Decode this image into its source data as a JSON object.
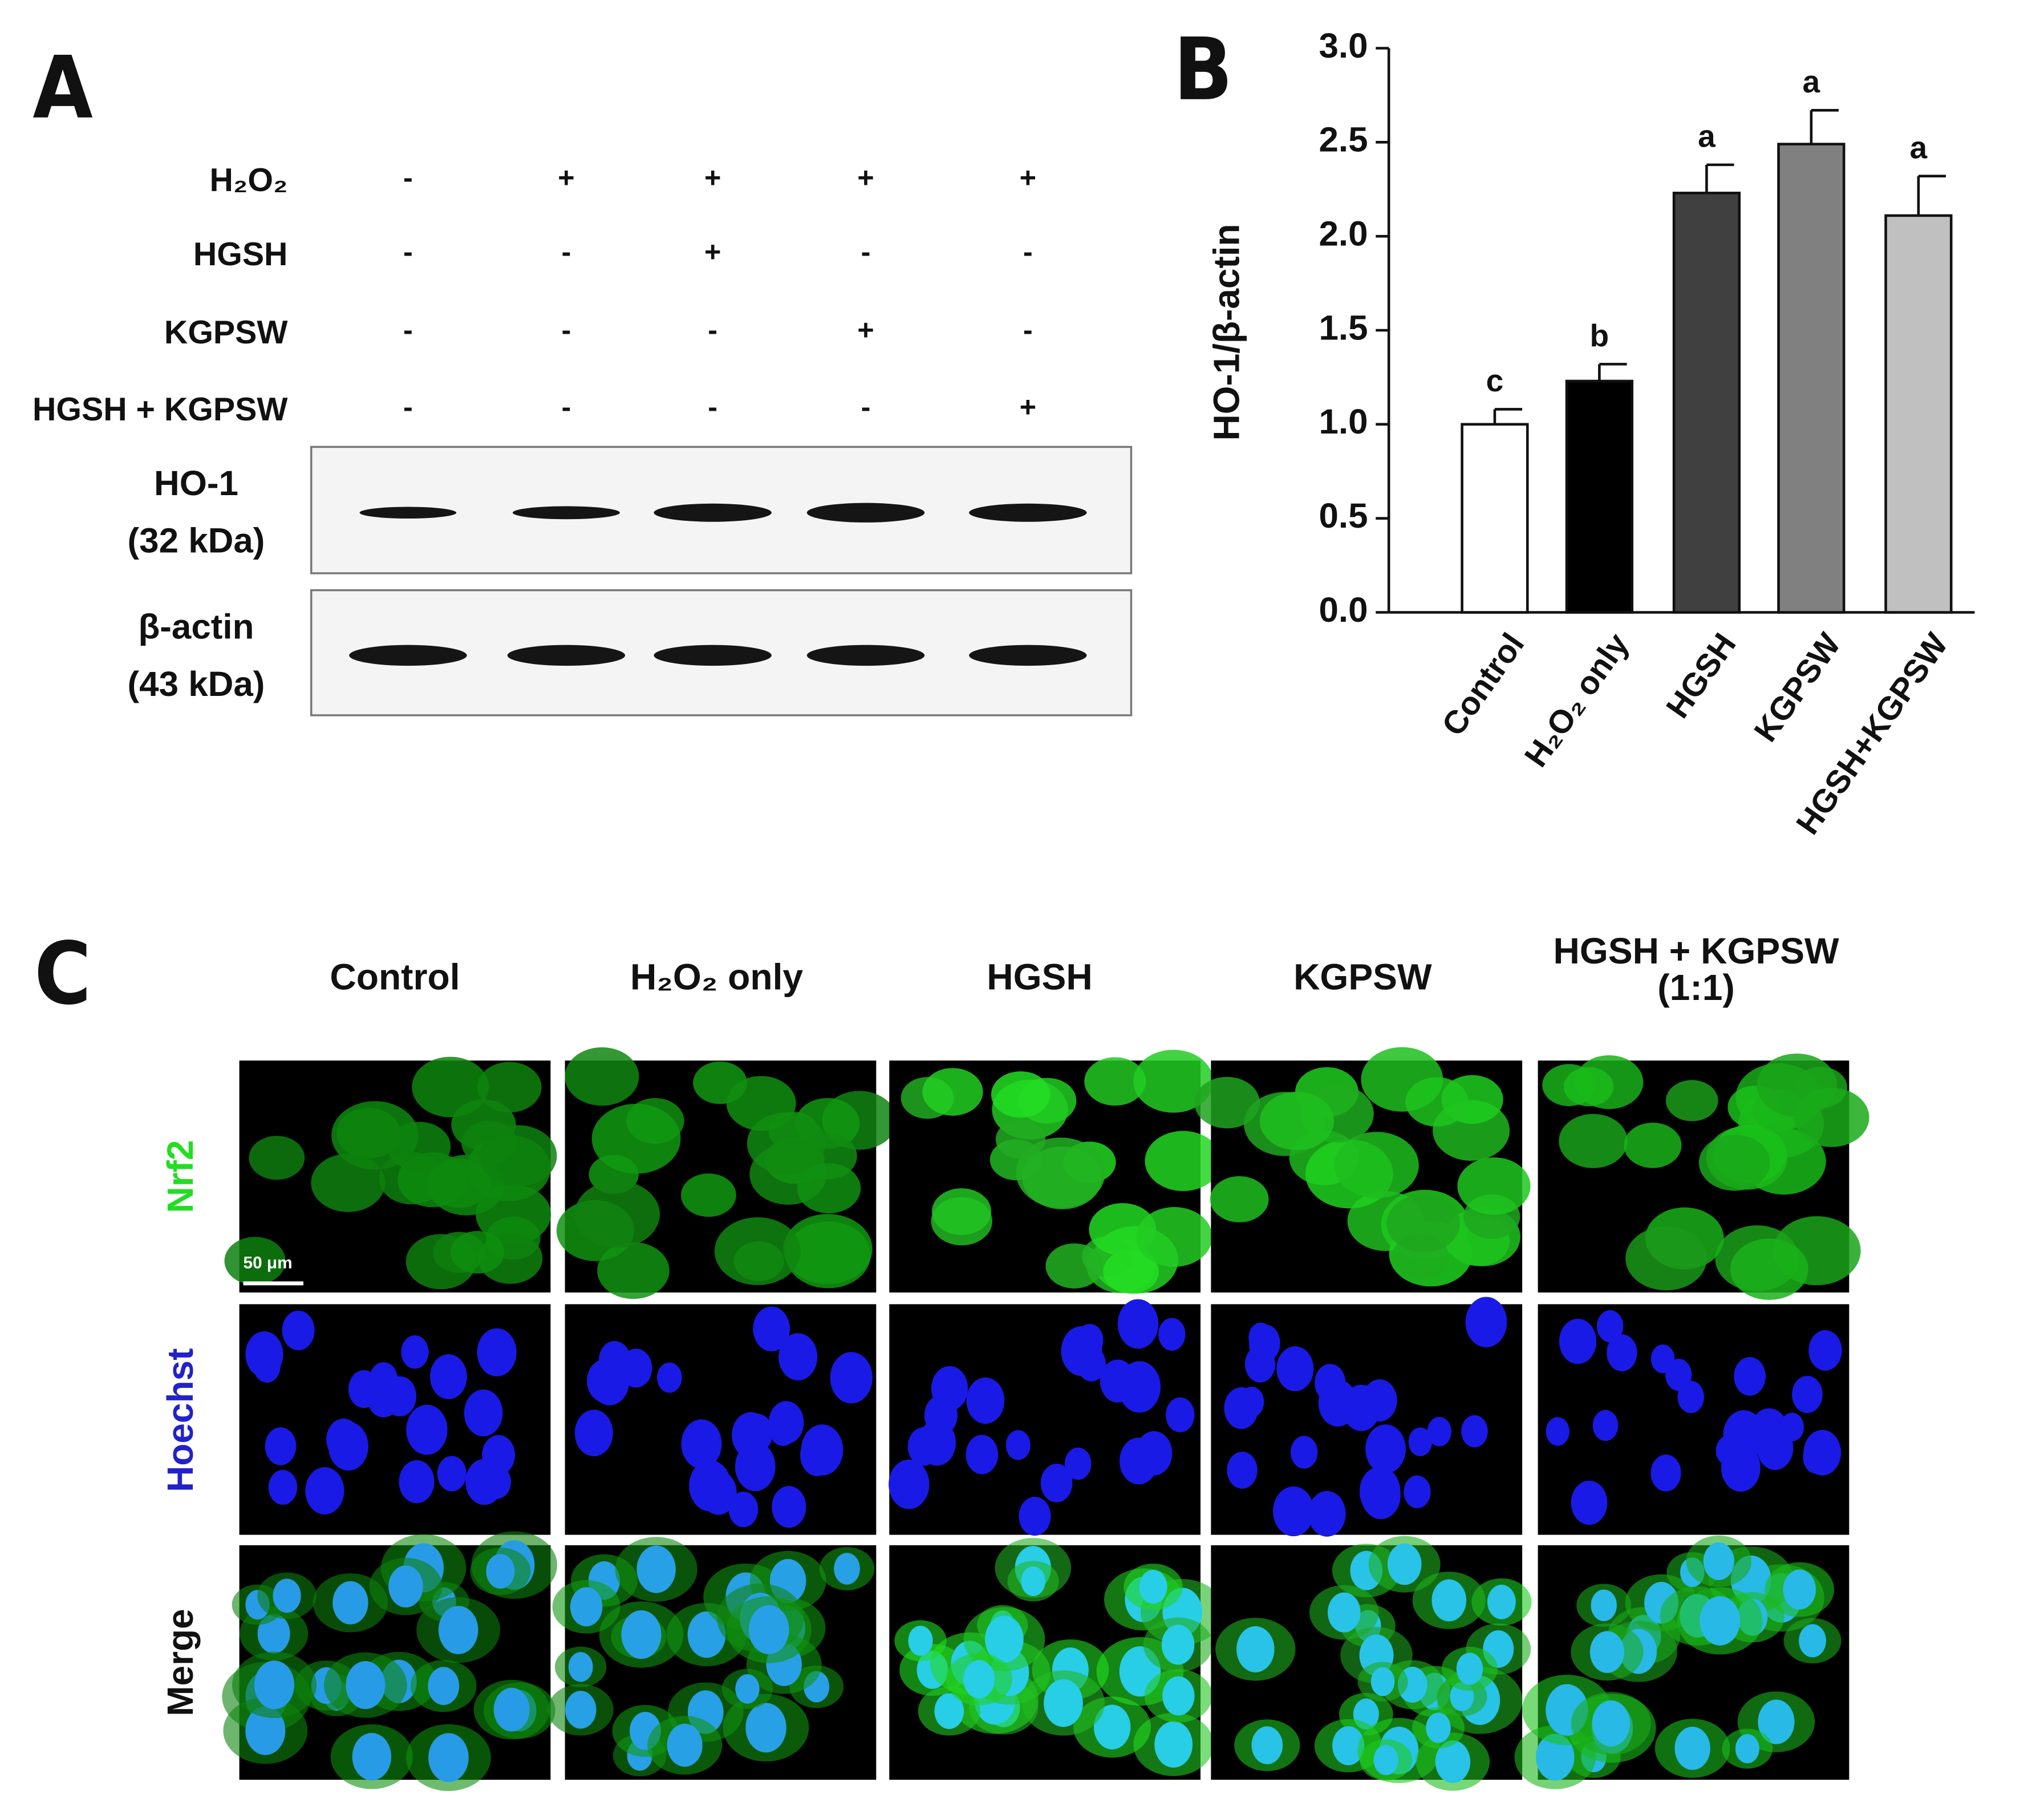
{
  "panel_labels": [
    "A",
    "B",
    "C"
  ],
  "blot": {
    "rows": [
      {
        "label": "H₂O₂",
        "signs": [
          "-",
          "+",
          "+",
          "+",
          "+"
        ]
      },
      {
        "label": "HGSH",
        "signs": [
          "-",
          "-",
          "+",
          "-",
          "-"
        ]
      },
      {
        "label": "KGPSW",
        "signs": [
          "-",
          "-",
          "-",
          "+",
          "-"
        ]
      },
      {
        "label": "HGSH + KGPSW",
        "signs": [
          "-",
          "-",
          "-",
          "-",
          "+"
        ]
      }
    ],
    "bands": [
      {
        "label": "HO-1",
        "size": "(32 kDa)"
      },
      {
        "label": "β-actin",
        "size": "(43 kDa)"
      }
    ]
  },
  "chart_data": {
    "type": "bar",
    "ylabel": "HO-1/β-actin",
    "categories": [
      "Control",
      "H₂O₂ only",
      "HGSH",
      "KGPSW",
      "HGSH+KGPSW"
    ],
    "values": [
      1.0,
      1.23,
      2.23,
      2.49,
      2.11
    ],
    "errors": [
      0.08,
      0.09,
      0.15,
      0.18,
      0.21
    ],
    "annotations": [
      "c",
      "b",
      "a",
      "a",
      "a"
    ],
    "colors": [
      "#ffffff",
      "#000000",
      "#404040",
      "#808080",
      "#c0c0c0"
    ],
    "ylim": [
      0,
      3
    ],
    "yticks": [
      {
        "value": 0,
        "label": "0.0"
      },
      {
        "value": 0.5,
        "label": "0.5"
      },
      {
        "value": 1,
        "label": "1.0"
      },
      {
        "value": 1.5,
        "label": "1.5"
      },
      {
        "value": 2,
        "label": "2.0"
      },
      {
        "value": 2.5,
        "label": "2.5"
      },
      {
        "value": 3,
        "label": "3.0"
      }
    ]
  },
  "microscopy": {
    "column_titles": [
      [
        "Control"
      ],
      [
        "H₂O₂ only"
      ],
      [
        "HGSH"
      ],
      [
        "KGPSW"
      ],
      [
        "HGSH + KGPSW",
        "(1:1)"
      ]
    ],
    "row_labels": [
      "Nrf2",
      "Hoechst",
      "Merge"
    ],
    "scale_bar": "50 μm"
  }
}
